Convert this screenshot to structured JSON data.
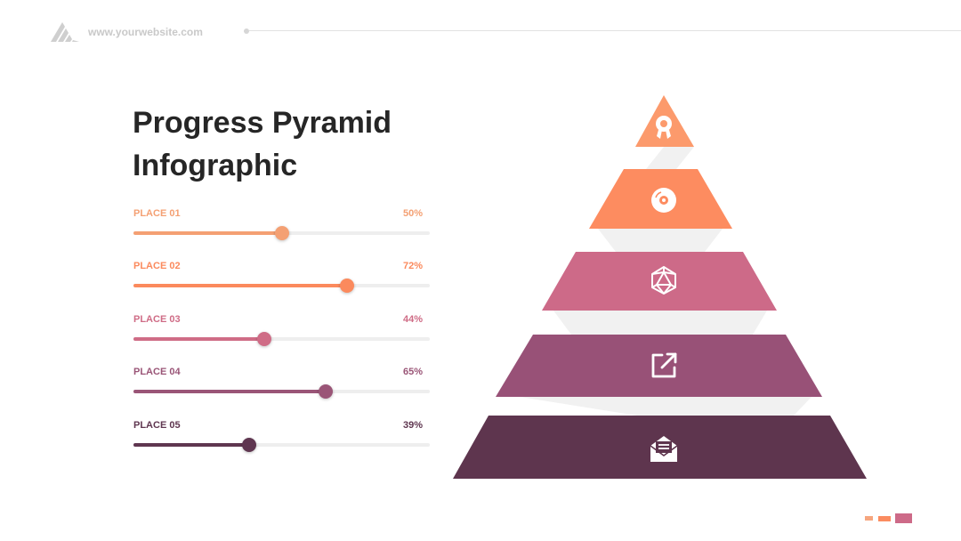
{
  "header": {
    "website": "www.yourwebsite.com",
    "logo_icon": "mountain-stripes-logo-icon",
    "logo_color": "#cfcfcf"
  },
  "title": {
    "line1": "Progress Pyramid",
    "line2": "Infographic"
  },
  "places": [
    {
      "label": "PLACE 01",
      "percent_text": "50%",
      "value": 0.5,
      "color": "#f4a073"
    },
    {
      "label": "PLACE 02",
      "percent_text": "72%",
      "value": 0.72,
      "color": "#fb8a5d"
    },
    {
      "label": "PLACE 03",
      "percent_text": "44%",
      "value": 0.44,
      "color": "#cf6c86"
    },
    {
      "label": "PLACE 04",
      "percent_text": "65%",
      "value": 0.65,
      "color": "#9a5577"
    },
    {
      "label": "PLACE 05",
      "percent_text": "39%",
      "value": 0.39,
      "color": "#5f3650"
    }
  ],
  "pyramid": {
    "tiers": [
      {
        "icon": "award-ribbon-icon",
        "color": "#fc9a6c"
      },
      {
        "icon": "disc-icon",
        "color": "#fd8c60"
      },
      {
        "icon": "polyhedron-icon",
        "color": "#cd6a88"
      },
      {
        "icon": "external-link-icon",
        "color": "#985177"
      },
      {
        "icon": "envelope-icon",
        "color": "#5e354e"
      }
    ],
    "shadow_color": "#f1f1f1"
  },
  "footer": {
    "marks": [
      "#f6a67f",
      "#fb8c60",
      "#cd6a88"
    ]
  }
}
